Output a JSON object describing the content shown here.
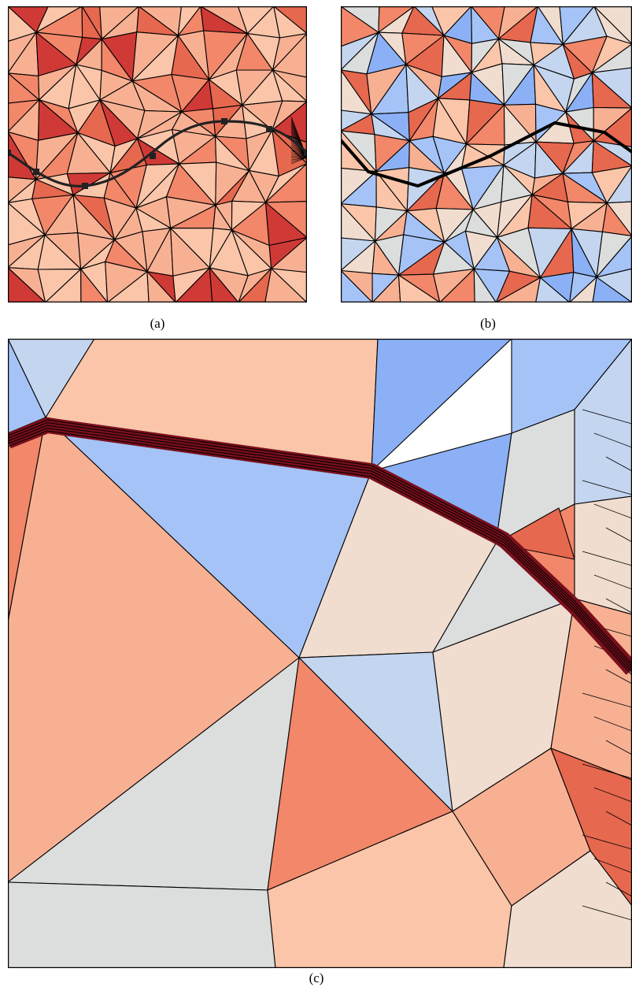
{
  "captions": {
    "a": "(a)",
    "b": "(b)",
    "c": "(c)"
  },
  "colors": {
    "dark_red": "#d03a36",
    "red": "#e6684f",
    "salmon": "#f2876a",
    "light_salmon": "#f8b093",
    "peach": "#fac5a9",
    "cream": "#f0ddd0",
    "gray": "#dcdddd",
    "light_blue": "#c4d5ef",
    "blue": "#a5c3f6",
    "mid_blue": "#8bb0f5",
    "deep_blue": "#7aa2ef",
    "curve": "#222222",
    "band_stroke": "#7a0f1c",
    "edge": "#000000"
  }
}
